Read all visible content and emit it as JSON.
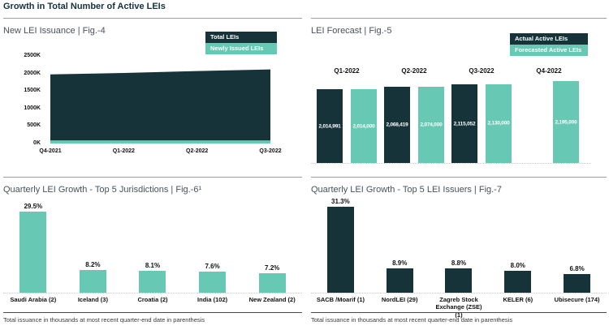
{
  "page_title": "Growth in Total Number of Active LEIs",
  "colors": {
    "dark": "#16333a",
    "teal": "#67c8b3",
    "title_text": "#15323c",
    "panel_title_text": "#47525a",
    "rule_gray": "#9e9e9e",
    "footer_rule": "#4a4a4a"
  },
  "panels": {
    "fig4": {
      "title": "New LEI Issuance | Fig.-4",
      "legend": [
        {
          "label": "Total LEIs",
          "color": "dark"
        },
        {
          "label": "Newly Issued LEIs",
          "color": "teal"
        }
      ]
    },
    "fig5": {
      "title": "LEI Forecast | Fig.-5",
      "legend": [
        {
          "label": "Actual Active LEIs",
          "color": "dark"
        },
        {
          "label": "Forecasted Active LEIs",
          "color": "teal"
        }
      ]
    },
    "fig6": {
      "title": "Quarterly LEI Growth - Top 5 Jurisdictions | Fig.-6¹",
      "footnote": "Total issuance in thousands at most recent quarter-end date in parenthesis"
    },
    "fig7": {
      "title": "Quarterly LEI Growth - Top 5 LEI Issuers | Fig.-7",
      "footnote": "Total issuance in thousands at most recent quarter-end date in parenthesis"
    }
  },
  "chart_data": [
    {
      "id": "fig4",
      "type": "area",
      "title": "New LEI Issuance",
      "x": [
        "Q4-2021",
        "Q1-2022",
        "Q2-2022",
        "Q3-2022"
      ],
      "ylim": [
        0,
        2500000
      ],
      "yticks": [
        "2500K",
        "2000K",
        "1500K",
        "1000K",
        "500K",
        "0K"
      ],
      "legend_position": "top-right",
      "grid": false,
      "series": [
        {
          "name": "Total LEIs",
          "color": "dark",
          "values": [
            1972000,
            2014991,
            2068419,
            2115052
          ]
        },
        {
          "name": "Newly Issued LEIs",
          "color": "teal",
          "values": [
            90000,
            90000,
            90000,
            90000
          ]
        }
      ]
    },
    {
      "id": "fig5",
      "type": "bar",
      "title": "LEI Forecast",
      "categories": [
        "Q1-2022",
        "Q2-2022",
        "Q3-2022",
        "Q4-2022"
      ],
      "category_label_position": "above-bars",
      "legend_position": "top-right",
      "baseline_style": "dotted",
      "axis_zero_based": false,
      "series": [
        {
          "name": "Actual Active LEIs",
          "color": "dark",
          "values": [
            2014991,
            2068419,
            2115052,
            null
          ],
          "data_labels": [
            "2,014,991",
            "2,068,419",
            "2,115,052",
            null
          ]
        },
        {
          "name": "Forecasted Active LEIs",
          "color": "teal",
          "values": [
            2014000,
            2074000,
            2130000,
            2195000
          ],
          "data_labels": [
            "2,014,000",
            "2,074,000",
            "2,130,000",
            "2,195,000"
          ]
        }
      ]
    },
    {
      "id": "fig6",
      "type": "bar",
      "title": "Quarterly LEI Growth - Top 5 Jurisdictions",
      "unit": "%",
      "color": "teal",
      "baseline_style": "dotted",
      "categories": [
        "Saudi Arabia (2)",
        "Iceland (3)",
        "Croatia (2)",
        "India (102)",
        "New Zealand (2)"
      ],
      "values": [
        29.5,
        8.2,
        8.1,
        7.6,
        7.2
      ],
      "data_labels": [
        "29.5%",
        "8.2%",
        "8.1%",
        "7.6%",
        "7.2%"
      ]
    },
    {
      "id": "fig7",
      "type": "bar",
      "title": "Quarterly LEI Growth - Top 5 LEI Issuers",
      "unit": "%",
      "color": "dark",
      "baseline_style": "dotted",
      "categories": [
        "SACB /Moarif (1)",
        "NordLEI (29)",
        "Zagreb Stock Exchange (ZSE) (1)",
        "KELER (6)",
        "Ubisecure (174)"
      ],
      "values": [
        31.3,
        8.9,
        8.8,
        8.0,
        6.8
      ],
      "data_labels": [
        "31.3%",
        "8.9%",
        "8.8%",
        "8.0%",
        "6.8%"
      ]
    }
  ]
}
